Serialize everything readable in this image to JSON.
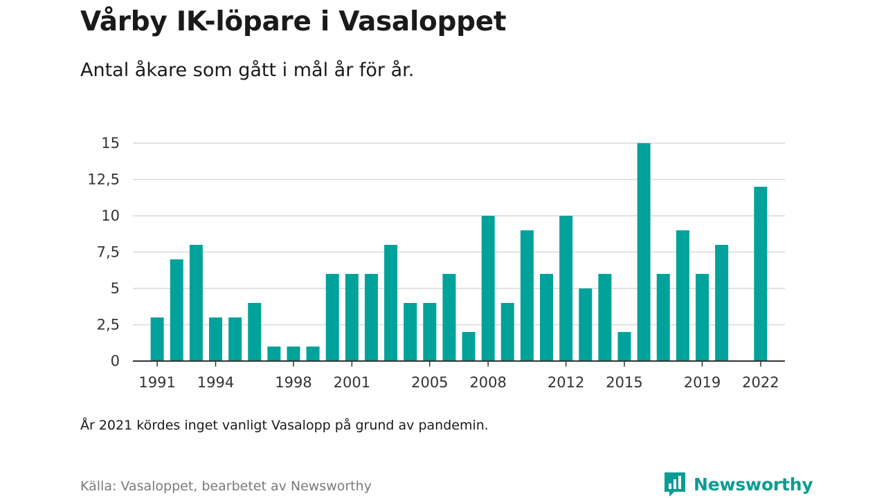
{
  "header": {
    "title": "Vårby IK-löpare i Vasaloppet",
    "subtitle": "Antal åkare som gått i mål år för år."
  },
  "footer": {
    "note": "År 2021 kördes inget vanligt Vasalopp på grund av pandemin.",
    "source": "Källa: Vasaloppet, bearbetet av Newsworthy",
    "brand": "Newsworthy"
  },
  "colors": {
    "bar": "#00a29a",
    "brand": "#0b9c93",
    "grid": "#d9d9d9",
    "axis": "#333333"
  },
  "chart_data": {
    "type": "bar",
    "title": "Vårby IK-löpare i Vasaloppet",
    "subtitle": "Antal åkare som gått i mål år för år.",
    "x": [
      1991,
      1992,
      1993,
      1994,
      1995,
      1996,
      1997,
      1998,
      1999,
      2000,
      2001,
      2002,
      2003,
      2004,
      2005,
      2006,
      2007,
      2008,
      2009,
      2010,
      2011,
      2012,
      2013,
      2014,
      2015,
      2016,
      2017,
      2018,
      2019,
      2020,
      2021,
      2022
    ],
    "values": [
      3,
      7,
      8,
      3,
      3,
      4,
      1,
      1,
      1,
      6,
      6,
      6,
      8,
      4,
      4,
      6,
      2,
      10,
      4,
      9,
      6,
      10,
      5,
      6,
      2,
      15,
      6,
      9,
      6,
      8,
      null,
      12
    ],
    "x_tick_labels": [
      "1991",
      "1994",
      "1998",
      "2001",
      "2005",
      "2008",
      "2012",
      "2015",
      "2019",
      "2022"
    ],
    "y_ticks": [
      0,
      2.5,
      5,
      7.5,
      10,
      12.5,
      15
    ],
    "y_tick_labels": [
      "0",
      "2,5",
      "5",
      "7,5",
      "10",
      "12,5",
      "15"
    ],
    "ylim": [
      0,
      15
    ],
    "xlim": [
      1989.75,
      2023.25
    ],
    "grid": true,
    "xlabel": "",
    "ylabel": ""
  }
}
